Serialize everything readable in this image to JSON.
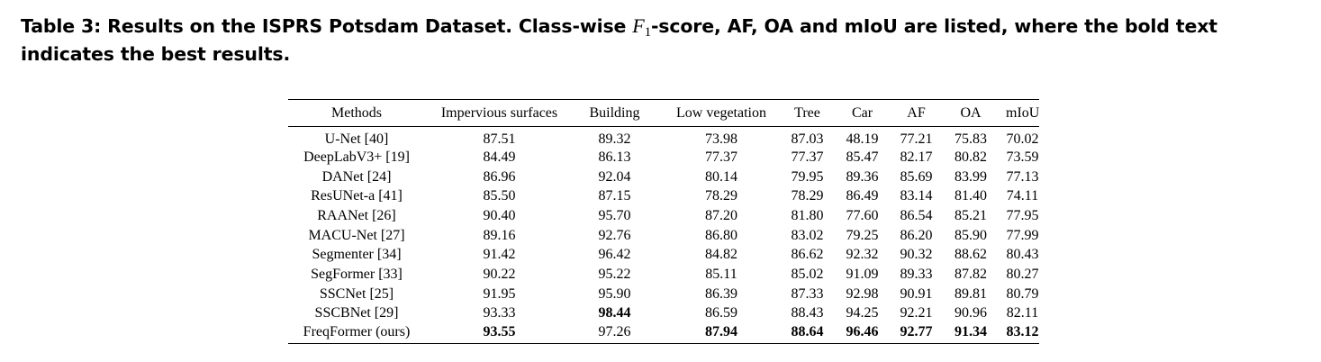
{
  "caption": {
    "prefix": "Table 3: Results on the ISPRS Potsdam Dataset. Class-wise ",
    "f_symbol": "F",
    "f_subscript": "1",
    "suffix": "-score, AF, OA and mIoU are listed, where the bold text indicates the best results."
  },
  "table": {
    "headers": [
      "Methods",
      "Impervious surfaces",
      "Building",
      "Low vegetation",
      "Tree",
      "Car",
      "AF",
      "OA",
      "mIoU"
    ],
    "rows": [
      {
        "method": "U-Net [40]",
        "values": [
          "87.51",
          "89.32",
          "73.98",
          "87.03",
          "48.19",
          "77.21",
          "75.83",
          "70.02"
        ],
        "bold": []
      },
      {
        "method": "DeepLabV3+ [19]",
        "values": [
          "84.49",
          "86.13",
          "77.37",
          "77.37",
          "85.47",
          "82.17",
          "80.82",
          "73.59"
        ],
        "bold": []
      },
      {
        "method": "DANet [24]",
        "values": [
          "86.96",
          "92.04",
          "80.14",
          "79.95",
          "89.36",
          "85.69",
          "83.99",
          "77.13"
        ],
        "bold": []
      },
      {
        "method": "ResUNet-a [41]",
        "values": [
          "85.50",
          "87.15",
          "78.29",
          "78.29",
          "86.49",
          "83.14",
          "81.40",
          "74.11"
        ],
        "bold": []
      },
      {
        "method": "RAANet [26]",
        "values": [
          "90.40",
          "95.70",
          "87.20",
          "81.80",
          "77.60",
          "86.54",
          "85.21",
          "77.95"
        ],
        "bold": []
      },
      {
        "method": "MACU-Net [27]",
        "values": [
          "89.16",
          "92.76",
          "86.80",
          "83.02",
          "79.25",
          "86.20",
          "85.90",
          "77.99"
        ],
        "bold": []
      },
      {
        "method": "Segmenter [34]",
        "values": [
          "91.42",
          "96.42",
          "84.82",
          "86.62",
          "92.32",
          "90.32",
          "88.62",
          "80.43"
        ],
        "bold": []
      },
      {
        "method": "SegFormer [33]",
        "values": [
          "90.22",
          "95.22",
          "85.11",
          "85.02",
          "91.09",
          "89.33",
          "87.82",
          "80.27"
        ],
        "bold": []
      },
      {
        "method": "SSCNet [25]",
        "values": [
          "91.95",
          "95.90",
          "86.39",
          "87.33",
          "92.98",
          "90.91",
          "89.81",
          "80.79"
        ],
        "bold": []
      },
      {
        "method": "SSCBNet [29]",
        "values": [
          "93.33",
          "98.44",
          "86.59",
          "88.43",
          "94.25",
          "92.21",
          "90.96",
          "82.11"
        ],
        "bold": [
          1
        ]
      },
      {
        "method": "FreqFormer (ours)",
        "values": [
          "93.55",
          "97.26",
          "87.94",
          "88.64",
          "96.46",
          "92.77",
          "91.34",
          "83.12"
        ],
        "bold": [
          0,
          2,
          3,
          4,
          5,
          6,
          7
        ]
      }
    ]
  }
}
